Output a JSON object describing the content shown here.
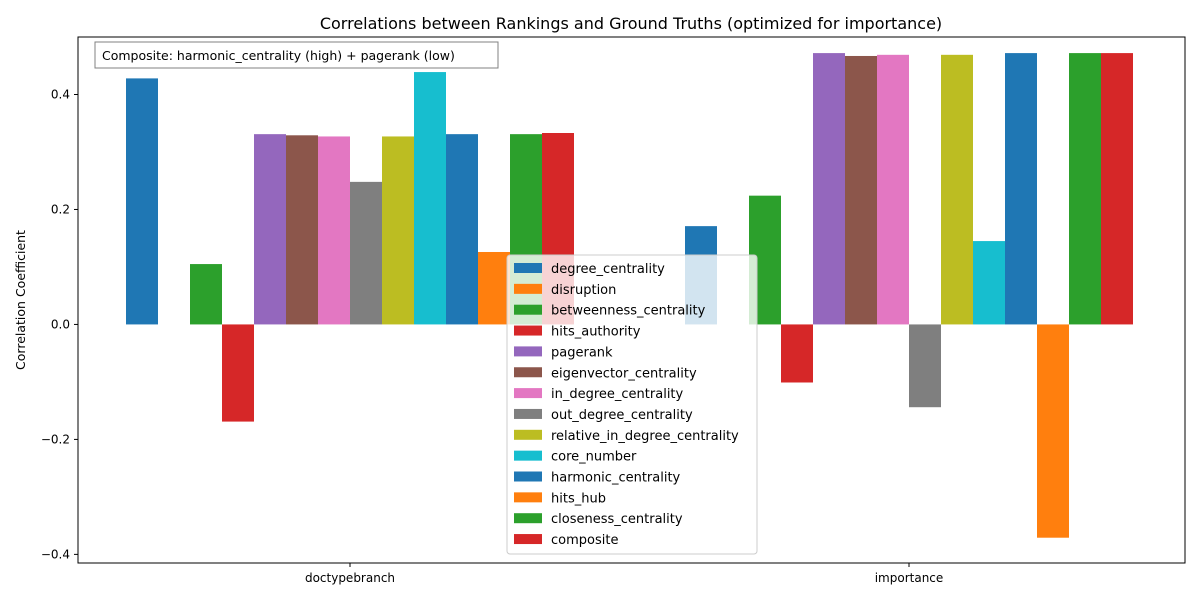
{
  "chart_data": {
    "type": "bar",
    "title": "Correlations between Rankings and Ground Truths (optimized for importance)",
    "xlabel": "",
    "ylabel": "Correlation Coefficient",
    "categories": [
      "doctypebranch",
      "importance"
    ],
    "ylim": [
      -0.415,
      0.5
    ],
    "yticks": [
      -0.4,
      -0.2,
      0.0,
      0.2,
      0.4
    ],
    "ytick_labels": [
      "−0.4",
      "−0.2",
      "0.0",
      "0.2",
      "0.4"
    ],
    "annotation": "Composite: harmonic_centrality (high) + pagerank (low)",
    "legend_position": "lower center",
    "grid": false,
    "series": [
      {
        "name": "degree_centrality",
        "color": "#1f77b4",
        "values": [
          0.428,
          0.171
        ]
      },
      {
        "name": "disruption",
        "color": "#ff7f0e",
        "values": [
          0.0,
          0.0
        ]
      },
      {
        "name": "betweenness_centrality",
        "color": "#2ca02c",
        "values": [
          0.105,
          0.224
        ]
      },
      {
        "name": "hits_authority",
        "color": "#d62728",
        "values": [
          -0.169,
          -0.101
        ]
      },
      {
        "name": "pagerank",
        "color": "#9467bd",
        "values": [
          0.331,
          0.472
        ]
      },
      {
        "name": "eigenvector_centrality",
        "color": "#8c564b",
        "values": [
          0.329,
          0.467
        ]
      },
      {
        "name": "in_degree_centrality",
        "color": "#e377c2",
        "values": [
          0.327,
          0.469
        ]
      },
      {
        "name": "out_degree_centrality",
        "color": "#7f7f7f",
        "values": [
          0.248,
          -0.144
        ]
      },
      {
        "name": "relative_in_degree_centrality",
        "color": "#bcbd22",
        "values": [
          0.327,
          0.469
        ]
      },
      {
        "name": "core_number",
        "color": "#17becf",
        "values": [
          0.439,
          0.145
        ]
      },
      {
        "name": "harmonic_centrality",
        "color": "#1f77b4",
        "values": [
          0.331,
          0.472
        ]
      },
      {
        "name": "hits_hub",
        "color": "#ff7f0e",
        "values": [
          0.126,
          -0.371
        ]
      },
      {
        "name": "closeness_centrality",
        "color": "#2ca02c",
        "values": [
          0.331,
          0.472
        ]
      },
      {
        "name": "composite",
        "color": "#d62728",
        "values": [
          0.333,
          0.472
        ]
      }
    ]
  }
}
